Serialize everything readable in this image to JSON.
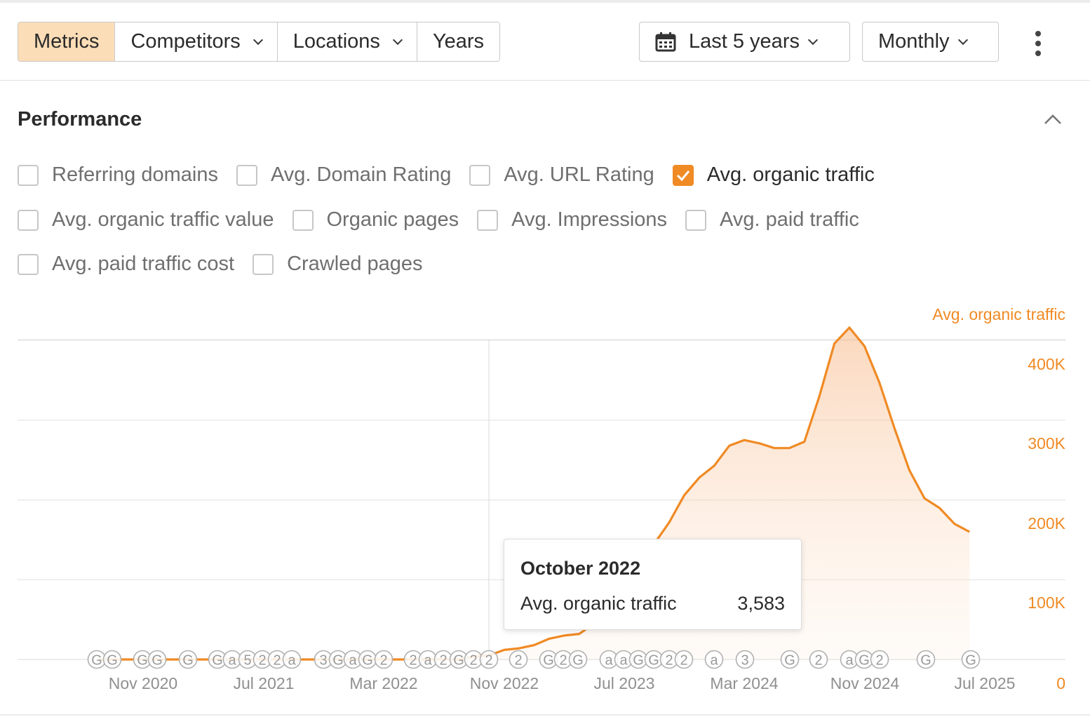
{
  "toolbar": {
    "tabs": [
      {
        "label": "Metrics",
        "active": true,
        "dropdown": false
      },
      {
        "label": "Competitors",
        "active": false,
        "dropdown": true
      },
      {
        "label": "Locations",
        "active": false,
        "dropdown": true
      },
      {
        "label": "Years",
        "active": false,
        "dropdown": false
      }
    ],
    "date_range": {
      "label": "Last 5 years",
      "icon": "calendar-icon"
    },
    "interval": {
      "label": "Monthly"
    },
    "more_icon": "more-vertical-icon"
  },
  "section": {
    "title": "Performance",
    "collapse_icon": "chevron-up-icon"
  },
  "metrics": [
    {
      "label": "Referring domains",
      "checked": false
    },
    {
      "label": "Avg. Domain Rating",
      "checked": false
    },
    {
      "label": "Avg. URL Rating",
      "checked": false
    },
    {
      "label": "Avg. organic traffic",
      "checked": true
    },
    {
      "label": "Avg. organic traffic value",
      "checked": false
    },
    {
      "label": "Organic pages",
      "checked": false
    },
    {
      "label": "Avg. Impressions",
      "checked": false
    },
    {
      "label": "Avg. paid traffic",
      "checked": false
    },
    {
      "label": "Avg. paid traffic cost",
      "checked": false
    },
    {
      "label": "Crawled pages",
      "checked": false
    }
  ],
  "colors": {
    "accent": "#f08a24",
    "active_tab": "#fbddb7",
    "grid": "#e6e6e6",
    "annotation": "#b0b0b0"
  },
  "chart_data": {
    "type": "area",
    "series": [
      {
        "name": "Avg. organic traffic",
        "x": [
          "2020-09",
          "2020-10",
          "2020-11",
          "2020-12",
          "2021-01",
          "2021-02",
          "2021-03",
          "2021-04",
          "2021-05",
          "2021-06",
          "2021-07",
          "2021-08",
          "2021-09",
          "2021-10",
          "2021-11",
          "2021-12",
          "2022-01",
          "2022-02",
          "2022-03",
          "2022-04",
          "2022-05",
          "2022-06",
          "2022-07",
          "2022-08",
          "2022-09",
          "2022-10",
          "2022-11",
          "2022-12",
          "2023-01",
          "2023-02",
          "2023-03",
          "2023-04",
          "2023-05",
          "2023-06",
          "2023-07",
          "2023-08",
          "2023-09",
          "2023-10",
          "2023-11",
          "2023-12",
          "2024-01",
          "2024-02",
          "2024-03",
          "2024-04",
          "2024-05",
          "2024-06",
          "2024-07",
          "2024-08",
          "2024-09",
          "2024-10",
          "2024-11",
          "2024-12",
          "2025-01",
          "2025-02",
          "2025-03",
          "2025-04",
          "2025-05",
          "2025-06",
          "2025-07"
        ],
        "values": [
          0,
          0,
          0,
          0,
          0,
          0,
          0,
          0,
          0,
          0,
          0,
          0,
          0,
          0,
          0,
          0,
          0,
          0,
          0,
          0,
          0,
          0,
          0,
          0,
          0,
          3583,
          5000,
          12000,
          14000,
          18000,
          26000,
          30000,
          32000,
          45000,
          60000,
          80000,
          110000,
          145000,
          172000,
          206000,
          228000,
          243000,
          268000,
          275000,
          271000,
          265000,
          265000,
          273000,
          330000,
          396000,
          416000,
          393000,
          347000,
          290000,
          237000,
          202000,
          190000,
          170000,
          160000
        ]
      }
    ],
    "x_ticks": [
      "Nov 2020",
      "Jul 2021",
      "Mar 2022",
      "Nov 2022",
      "Jul 2023",
      "Mar 2024",
      "Nov 2024",
      "Jul 2025"
    ],
    "y_ticks": [
      "0",
      "100K",
      "200K",
      "300K",
      "400K"
    ],
    "y_label": "Avg. organic traffic",
    "ylim": [
      0,
      400000
    ],
    "grid": true,
    "annotations": [
      "G",
      "G",
      "G",
      "G",
      "G",
      "G",
      "a",
      "5",
      "2",
      "2",
      "a",
      "3",
      "G",
      "a",
      "G",
      "2",
      "2",
      "a",
      "2",
      "G",
      "2",
      "2",
      "2",
      "G",
      "2",
      "G",
      "a",
      "a",
      "G",
      "G",
      "2",
      "2",
      "a",
      "3",
      "G",
      "2",
      "a",
      "G",
      "2",
      "G",
      "G"
    ]
  },
  "tooltip": {
    "title": "October 2022",
    "label": "Avg. organic traffic",
    "value": "3,583"
  }
}
